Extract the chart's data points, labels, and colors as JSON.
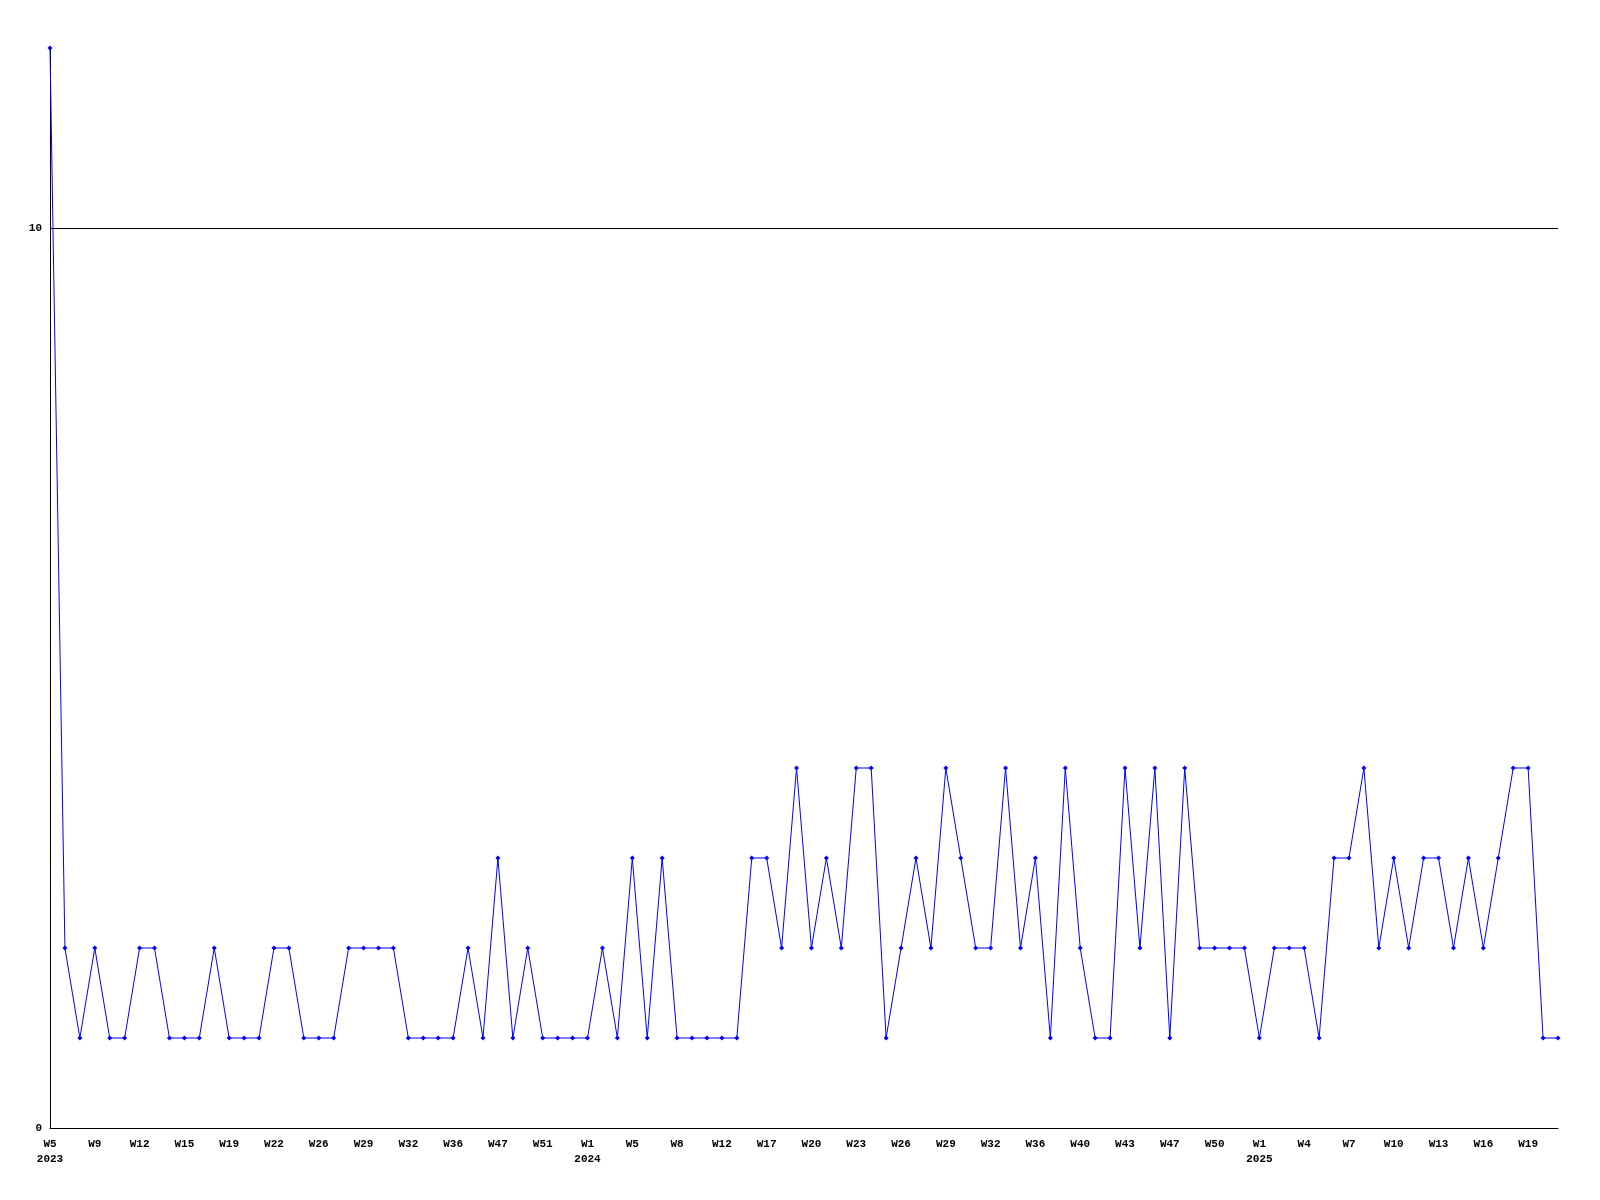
{
  "chart_data": {
    "type": "line",
    "categories": [
      "W5\n2023",
      null,
      null,
      "W9",
      null,
      null,
      "W12",
      null,
      null,
      "W15",
      null,
      null,
      "W19",
      null,
      null,
      "W22",
      null,
      null,
      "W26",
      null,
      null,
      "W29",
      null,
      null,
      "W32",
      null,
      null,
      "W36",
      null,
      null,
      "W47",
      null,
      null,
      "W51",
      null,
      null,
      "W1\n2024",
      null,
      null,
      "W5",
      null,
      null,
      "W8",
      null,
      null,
      "W12",
      null,
      null,
      "W17",
      null,
      null,
      "W20",
      null,
      null,
      "W23",
      null,
      null,
      "W26",
      null,
      null,
      "W29",
      null,
      null,
      "W32",
      null,
      null,
      "W36",
      null,
      null,
      "W40",
      null,
      null,
      "W43",
      null,
      null,
      "W47",
      null,
      null,
      "W50",
      null,
      null,
      "W1\n2025",
      null,
      null,
      "W4",
      null,
      null,
      "W7",
      null,
      null,
      "W10",
      null,
      null,
      "W13",
      null,
      null,
      "W16",
      null,
      null,
      "W19",
      null,
      null
    ],
    "series": [
      {
        "color": "#0000ff",
        "values": [
          12,
          2,
          1,
          2,
          1,
          1,
          2,
          2,
          1,
          1,
          1,
          2,
          1,
          1,
          1,
          2,
          2,
          1,
          1,
          1,
          2,
          2,
          2,
          2,
          1,
          1,
          1,
          1,
          2,
          1,
          3,
          1,
          2,
          1,
          1,
          1,
          1,
          2,
          1,
          3,
          1,
          3,
          1,
          1,
          1,
          1,
          1,
          3,
          3,
          2,
          4,
          2,
          3,
          2,
          4,
          4,
          1,
          2,
          3,
          2,
          4,
          3,
          2,
          2,
          4,
          2,
          3,
          1,
          4,
          2,
          1,
          1,
          4,
          2,
          4,
          1,
          4,
          2,
          2,
          2,
          2,
          1,
          2,
          2,
          2,
          1,
          3,
          3,
          4,
          2,
          3,
          2,
          3,
          3,
          2,
          3,
          2,
          3,
          4,
          4,
          1,
          1
        ]
      }
    ],
    "ylim": [
      0,
      12
    ],
    "yticks": [
      0,
      10
    ],
    "grid": "y",
    "marker": "diamond"
  }
}
